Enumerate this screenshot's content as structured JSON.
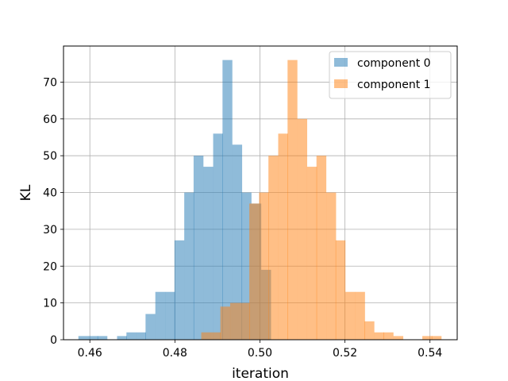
{
  "chart_data": {
    "type": "bar",
    "xlabel": "iteration",
    "ylabel": "KL",
    "xlim": [
      0.4538,
      0.5464
    ],
    "ylim": [
      0,
      79.8
    ],
    "grid": true,
    "legend_position": "top-right",
    "bin_width": 0.00226,
    "x_ticks": [
      {
        "value": 0.46,
        "label": "0.46"
      },
      {
        "value": 0.48,
        "label": "0.48"
      },
      {
        "value": 0.5,
        "label": "0.50"
      },
      {
        "value": 0.52,
        "label": "0.52"
      },
      {
        "value": 0.54,
        "label": "0.54"
      }
    ],
    "y_ticks": [
      {
        "value": 0,
        "label": "0"
      },
      {
        "value": 10,
        "label": "10"
      },
      {
        "value": 20,
        "label": "20"
      },
      {
        "value": 30,
        "label": "30"
      },
      {
        "value": 40,
        "label": "40"
      },
      {
        "value": 50,
        "label": "50"
      },
      {
        "value": 60,
        "label": "60"
      },
      {
        "value": 70,
        "label": "70"
      }
    ],
    "series": [
      {
        "name": "component 0",
        "color": "#1f77b4",
        "opacity": 0.5,
        "bin_starts": [
          0.4573,
          0.4596,
          0.4618,
          0.4641,
          0.4664,
          0.4686,
          0.4709,
          0.4731,
          0.4754,
          0.4777,
          0.4799,
          0.4822,
          0.4844,
          0.4867,
          0.489,
          0.4912,
          0.4935,
          0.4957,
          0.498,
          0.5003
        ],
        "values": [
          1,
          1,
          1,
          0,
          1,
          2,
          2,
          7,
          13,
          13,
          27,
          40,
          50,
          47,
          56,
          76,
          53,
          40,
          37,
          19
        ]
      },
      {
        "name": "component 1",
        "color": "#ff7f0e",
        "opacity": 0.5,
        "bin_starts": [
          0.4862,
          0.4885,
          0.4907,
          0.493,
          0.4953,
          0.4975,
          0.4998,
          0.502,
          0.5043,
          0.5065,
          0.5088,
          0.5111,
          0.5133,
          0.5156,
          0.5178,
          0.5201,
          0.5224,
          0.5246,
          0.5269,
          0.5291,
          0.5314,
          0.5337,
          0.5359,
          0.5382,
          0.5404
        ],
        "values": [
          2,
          2,
          9,
          10,
          10,
          37,
          40,
          50,
          56,
          76,
          60,
          47,
          50,
          40,
          27,
          13,
          13,
          5,
          2,
          2,
          1,
          0,
          0,
          1,
          1
        ]
      }
    ]
  }
}
